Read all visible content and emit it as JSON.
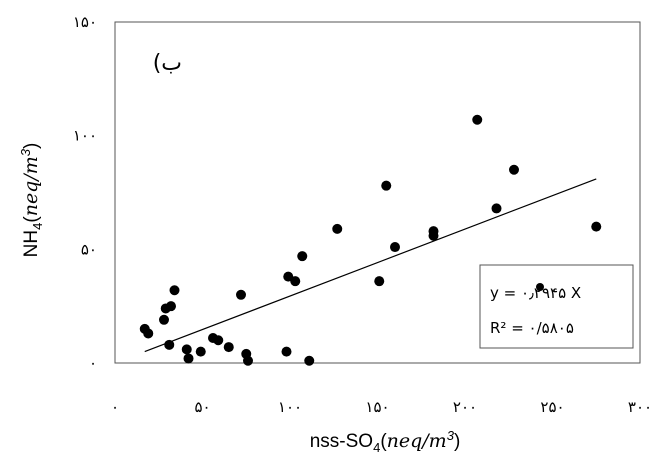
{
  "chart_data": {
    "type": "scatter",
    "panel_label": "(ب",
    "xlabel": "nss-SO4(neq/m3)",
    "ylabel": "NH4(neq/m3)",
    "xlim": [
      0,
      300
    ],
    "ylim": [
      0,
      150
    ],
    "xticks": [
      {
        "value": 0,
        "label": "۰"
      },
      {
        "value": 50,
        "label": "۵۰"
      },
      {
        "value": 100,
        "label": "۱۰۰"
      },
      {
        "value": 150,
        "label": "۱۵۰"
      },
      {
        "value": 200,
        "label": "۲۰۰"
      },
      {
        "value": 250,
        "label": "۲۵۰"
      },
      {
        "value": 300,
        "label": "۳۰۰"
      }
    ],
    "yticks": [
      {
        "value": 0,
        "label": "۰"
      },
      {
        "value": 50,
        "label": "۵۰"
      },
      {
        "value": 100,
        "label": "۱۰۰"
      },
      {
        "value": 150,
        "label": "۱۵۰"
      }
    ],
    "grid": false,
    "points": [
      {
        "x": 17,
        "y": 15
      },
      {
        "x": 19,
        "y": 13
      },
      {
        "x": 28,
        "y": 19
      },
      {
        "x": 29,
        "y": 24
      },
      {
        "x": 31,
        "y": 8
      },
      {
        "x": 32,
        "y": 25
      },
      {
        "x": 34,
        "y": 32
      },
      {
        "x": 41,
        "y": 6
      },
      {
        "x": 42,
        "y": 2
      },
      {
        "x": 49,
        "y": 5
      },
      {
        "x": 56,
        "y": 11
      },
      {
        "x": 59,
        "y": 10
      },
      {
        "x": 65,
        "y": 7
      },
      {
        "x": 72,
        "y": 30
      },
      {
        "x": 75,
        "y": 4
      },
      {
        "x": 76,
        "y": 1
      },
      {
        "x": 98,
        "y": 5
      },
      {
        "x": 99,
        "y": 38
      },
      {
        "x": 103,
        "y": 36
      },
      {
        "x": 107,
        "y": 47
      },
      {
        "x": 111,
        "y": 1
      },
      {
        "x": 127,
        "y": 59
      },
      {
        "x": 151,
        "y": 36
      },
      {
        "x": 155,
        "y": 78
      },
      {
        "x": 160,
        "y": 51
      },
      {
        "x": 182,
        "y": 56
      },
      {
        "x": 182,
        "y": 58
      },
      {
        "x": 207,
        "y": 107
      },
      {
        "x": 218,
        "y": 68
      },
      {
        "x": 228,
        "y": 85
      },
      {
        "x": 275,
        "y": 60
      }
    ],
    "trendline": {
      "slope": 0.2945,
      "x_range": [
        17,
        275
      ]
    },
    "equation_line1": "y = ۰٫۲۹۴۵ X",
    "equation_line2": "R² = ۰/۵۸۰۵"
  }
}
